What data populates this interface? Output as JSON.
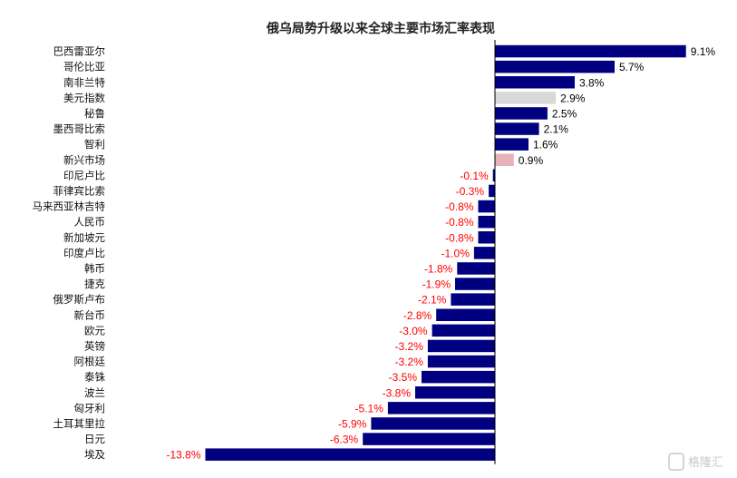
{
  "chart_data": {
    "type": "bar",
    "orientation": "horizontal",
    "title": "俄乌局势升级以来全球主要市场汇率表现",
    "xlabel": "",
    "ylabel": "",
    "grid": false,
    "xlim": [
      -14,
      10
    ],
    "categories": [
      "巴西雷亚尔",
      "哥伦比亚",
      "南非兰特",
      "美元指数",
      "秘鲁",
      "墨西哥比索",
      "智利",
      "新兴市场",
      "印尼卢比",
      "菲律宾比索",
      "马来西亚林吉特",
      "人民币",
      "新加坡元",
      "印度卢比",
      "韩币",
      "捷克",
      "俄罗斯卢布",
      "新台币",
      "欧元",
      "英镑",
      "阿根廷",
      "泰铢",
      "波兰",
      "匈牙利",
      "土耳其里拉",
      "日元",
      "埃及"
    ],
    "values": [
      9.1,
      5.7,
      3.8,
      2.9,
      2.5,
      2.1,
      1.6,
      0.9,
      -0.1,
      -0.3,
      -0.8,
      -0.8,
      -0.8,
      -1.0,
      -1.8,
      -1.9,
      -2.1,
      -2.8,
      -3.0,
      -3.2,
      -3.2,
      -3.5,
      -3.8,
      -5.1,
      -5.9,
      -6.3,
      -13.8
    ],
    "labels": [
      "9.1%",
      "5.7%",
      "3.8%",
      "2.9%",
      "2.5%",
      "2.1%",
      "1.6%",
      "0.9%",
      "-0.1%",
      "-0.3%",
      "-0.8%",
      "-0.8%",
      "-0.8%",
      "-1.0%",
      "-1.8%",
      "-1.9%",
      "-2.1%",
      "-2.8%",
      "-3.0%",
      "-3.2%",
      "-3.2%",
      "-3.5%",
      "-3.8%",
      "-5.1%",
      "-5.9%",
      "-6.3%",
      "-13.8%"
    ],
    "highlights": {
      "美元指数": "#d9d9d9",
      "新兴市场": "#e6b4b8"
    },
    "colors": {
      "bar": "#000080",
      "positive_label": "#000000",
      "negative_label": "#ff0000",
      "axis": "#000000"
    }
  },
  "watermark": "格隆汇"
}
